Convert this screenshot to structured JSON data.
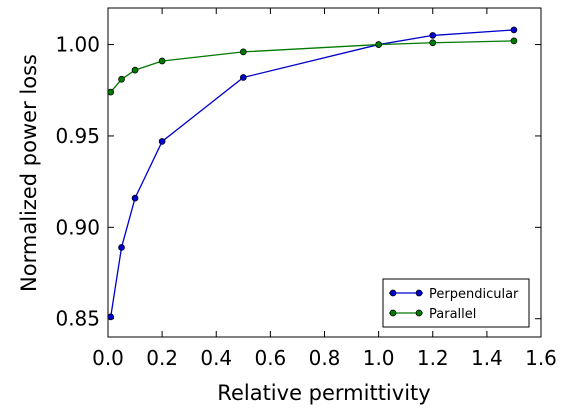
{
  "chart_data": {
    "type": "line",
    "title": "",
    "xlabel": "Relative permittivity",
    "ylabel": "Normalized power loss",
    "xlim": [
      0.0,
      1.6
    ],
    "ylim": [
      0.84,
      1.02
    ],
    "x_ticks": [
      "0.0",
      "0.2",
      "0.4",
      "0.6",
      "0.8",
      "1.0",
      "1.2",
      "1.4",
      "1.6"
    ],
    "y_ticks": [
      "0.85",
      "0.90",
      "0.95",
      "1.00"
    ],
    "grid": false,
    "legend_position": "bottom-right",
    "series": [
      {
        "name": "Perpendicular",
        "color": "#0000cc",
        "marker": "circle",
        "x": [
          0.01,
          0.05,
          0.1,
          0.2,
          0.5,
          1.0,
          1.2,
          1.5
        ],
        "y": [
          0.851,
          0.889,
          0.916,
          0.947,
          0.982,
          1.0,
          1.005,
          1.008
        ]
      },
      {
        "name": "Parallel",
        "color": "#007a00",
        "marker": "circle",
        "x": [
          0.01,
          0.05,
          0.1,
          0.2,
          0.5,
          1.0,
          1.2,
          1.5
        ],
        "y": [
          0.974,
          0.981,
          0.986,
          0.991,
          0.996,
          1.0,
          1.001,
          1.002
        ]
      }
    ]
  }
}
